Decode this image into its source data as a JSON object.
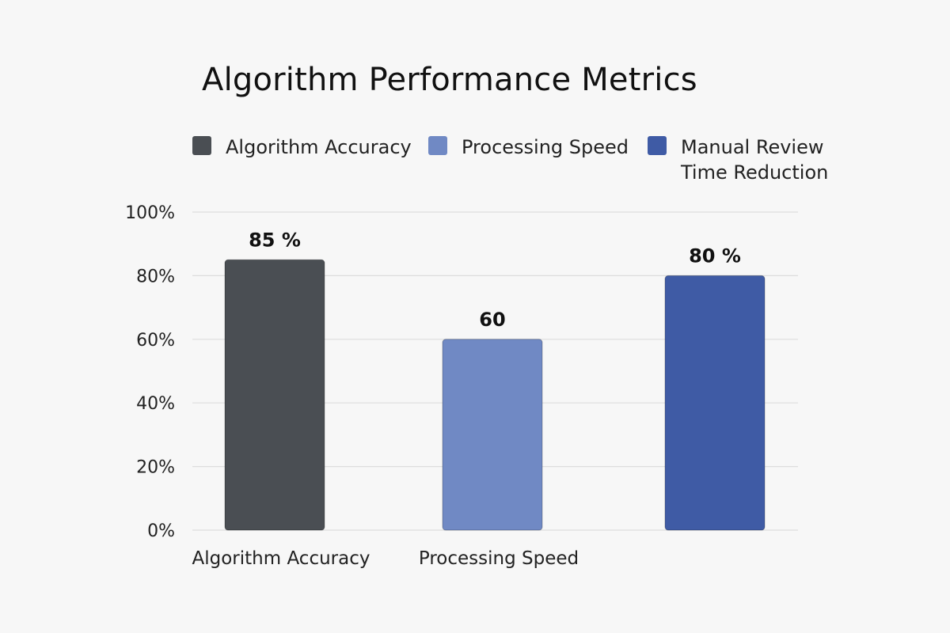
{
  "chart_data": {
    "type": "bar",
    "title": "Algorithm Performance Metrics",
    "categories": [
      "Algorithm Accuracy",
      "Processing Speed",
      "Manual Review Time Reduction"
    ],
    "x_tick_labels": [
      "Algorithm Accuracy",
      "Processing Speed",
      ""
    ],
    "values": [
      85,
      60,
      80
    ],
    "data_labels": [
      "85 %",
      "60",
      "80 %"
    ],
    "colors": [
      "#4a4e53",
      "#7089c4",
      "#3f5ba5"
    ],
    "ylim": [
      0,
      100
    ],
    "y_ticks": [
      0,
      20,
      40,
      60,
      80,
      100
    ],
    "y_tick_labels": [
      "0%",
      "20%",
      "40%",
      "60%",
      "80%",
      "100%"
    ],
    "xlabel": "",
    "ylabel": "",
    "grid": true,
    "legend": {
      "placement": "top",
      "entries": [
        {
          "label": "Algorithm Accuracy",
          "color": "#4a4e53"
        },
        {
          "label": "Processing Speed",
          "color": "#7089c4"
        },
        {
          "label": "Manual Review Time Reduction",
          "color": "#3f5ba5"
        }
      ]
    }
  }
}
